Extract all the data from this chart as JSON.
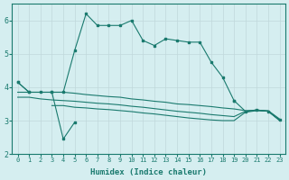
{
  "main_line_x": [
    0,
    1,
    2,
    3,
    4,
    5,
    6,
    7,
    8,
    9,
    10,
    11,
    12,
    13,
    14,
    15,
    16,
    17,
    18,
    19
  ],
  "main_line_y": [
    4.15,
    3.85,
    3.85,
    3.85,
    3.85,
    5.1,
    6.2,
    5.85,
    5.85,
    5.85,
    6.0,
    5.4,
    5.25,
    5.45,
    5.4,
    5.35,
    5.35,
    4.75,
    4.3,
    3.6
  ],
  "dip_line_x": [
    3,
    4,
    5
  ],
  "dip_line_y": [
    3.85,
    2.45,
    2.95
  ],
  "flat1_x": [
    0,
    1,
    2,
    3,
    4,
    5,
    6,
    7,
    8,
    9,
    10,
    11,
    12,
    13,
    14,
    15,
    16,
    17,
    18,
    19,
    20,
    21,
    22,
    23
  ],
  "flat1_y": [
    3.85,
    3.85,
    3.85,
    3.85,
    3.85,
    3.82,
    3.78,
    3.75,
    3.72,
    3.7,
    3.65,
    3.62,
    3.58,
    3.55,
    3.5,
    3.48,
    3.45,
    3.42,
    3.38,
    3.35,
    3.3,
    3.3,
    3.3,
    3.05
  ],
  "flat2_x": [
    0,
    1,
    2,
    3,
    4,
    5,
    6,
    7,
    8,
    9,
    10,
    11,
    12,
    13,
    14,
    15,
    16,
    17,
    18,
    19,
    20,
    21,
    22,
    23
  ],
  "flat2_y": [
    3.7,
    3.7,
    3.65,
    3.62,
    3.6,
    3.58,
    3.55,
    3.52,
    3.5,
    3.47,
    3.43,
    3.4,
    3.36,
    3.32,
    3.28,
    3.25,
    3.22,
    3.18,
    3.15,
    3.12,
    3.28,
    3.32,
    3.28,
    3.02
  ],
  "flat3_x": [
    3,
    4,
    5,
    6,
    7,
    8,
    9,
    10,
    11,
    12,
    13,
    14,
    15,
    16,
    17,
    18,
    19,
    20,
    21,
    22,
    23
  ],
  "flat3_y": [
    3.45,
    3.45,
    3.4,
    3.38,
    3.35,
    3.33,
    3.3,
    3.27,
    3.23,
    3.2,
    3.16,
    3.12,
    3.08,
    3.05,
    3.02,
    3.0,
    3.0,
    3.25,
    3.3,
    3.28,
    3.0
  ],
  "last_seg_x": [
    19,
    20,
    21,
    22,
    23
  ],
  "last_seg_y": [
    3.6,
    3.28,
    3.32,
    3.28,
    3.02
  ],
  "color": "#1a7a6e",
  "bg_color": "#d5eef0",
  "grid_color": "#c0d8db",
  "xlabel": "Humidex (Indice chaleur)",
  "xlim": [
    -0.5,
    23.5
  ],
  "ylim": [
    2,
    6.5
  ],
  "yticks": [
    2,
    3,
    4,
    5,
    6
  ],
  "xticks": [
    0,
    1,
    2,
    3,
    4,
    5,
    6,
    7,
    8,
    9,
    10,
    11,
    12,
    13,
    14,
    15,
    16,
    17,
    18,
    19,
    20,
    21,
    22,
    23
  ]
}
